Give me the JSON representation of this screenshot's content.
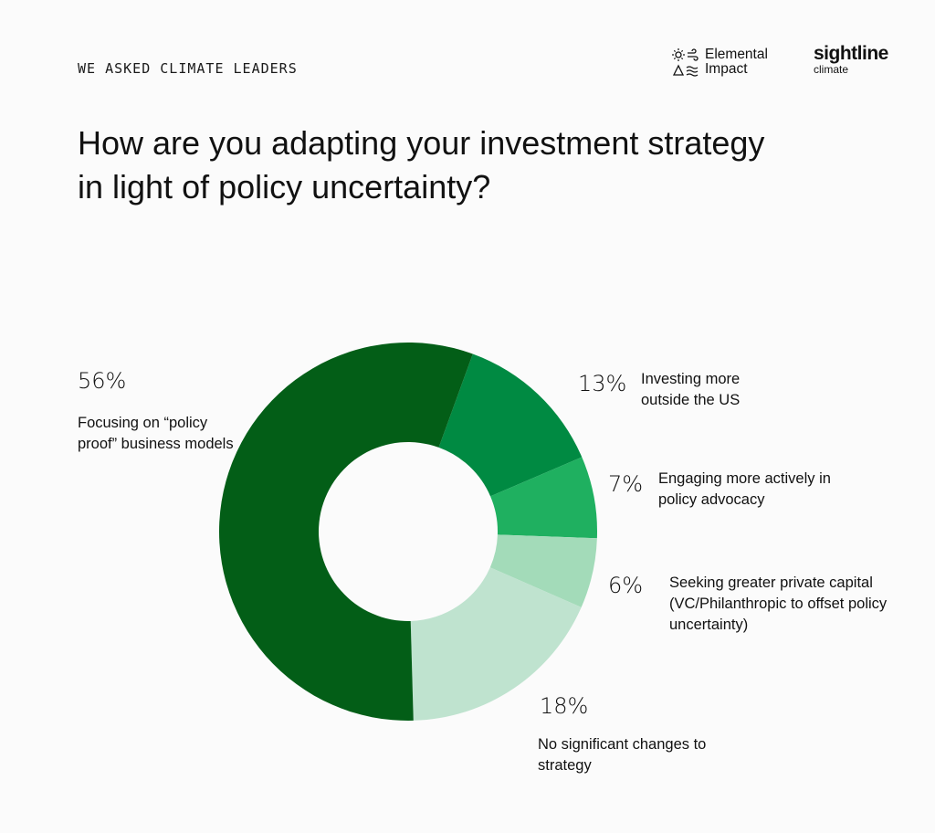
{
  "header": {
    "eyebrow": "WE ASKED CLIMATE LEADERS",
    "logo_left_line1": "Elemental",
    "logo_left_line2": "Impact",
    "logo_right_brand": "sightline",
    "logo_right_sub": "climate"
  },
  "title": "How are you adapting your investment strategy in light of policy uncertainty?",
  "chart_data": {
    "type": "pie",
    "donut": true,
    "title": "How are you adapting your investment strategy in light of policy uncertainty?",
    "slices": [
      {
        "label": "Investing more outside the US",
        "value": 13,
        "value_label": "13%",
        "color": "#008a42"
      },
      {
        "label": "Engaging more actively in policy advocacy",
        "value": 7,
        "value_label": "7%",
        "color": "#1fb060"
      },
      {
        "label": "Seeking greater private capital (VC/Philanthropic to offset policy uncertainty)",
        "value": 6,
        "value_label": "6%",
        "color": "#a3dbb9"
      },
      {
        "label": "No significant changes to strategy",
        "value": 18,
        "value_label": "18%",
        "color": "#bfe3cf"
      },
      {
        "label": "Focusing on “policy proof” business models",
        "value": 56,
        "value_label": "56%",
        "color": "#035e17"
      }
    ],
    "start_angle_deg": 20,
    "direction": "clockwise"
  }
}
